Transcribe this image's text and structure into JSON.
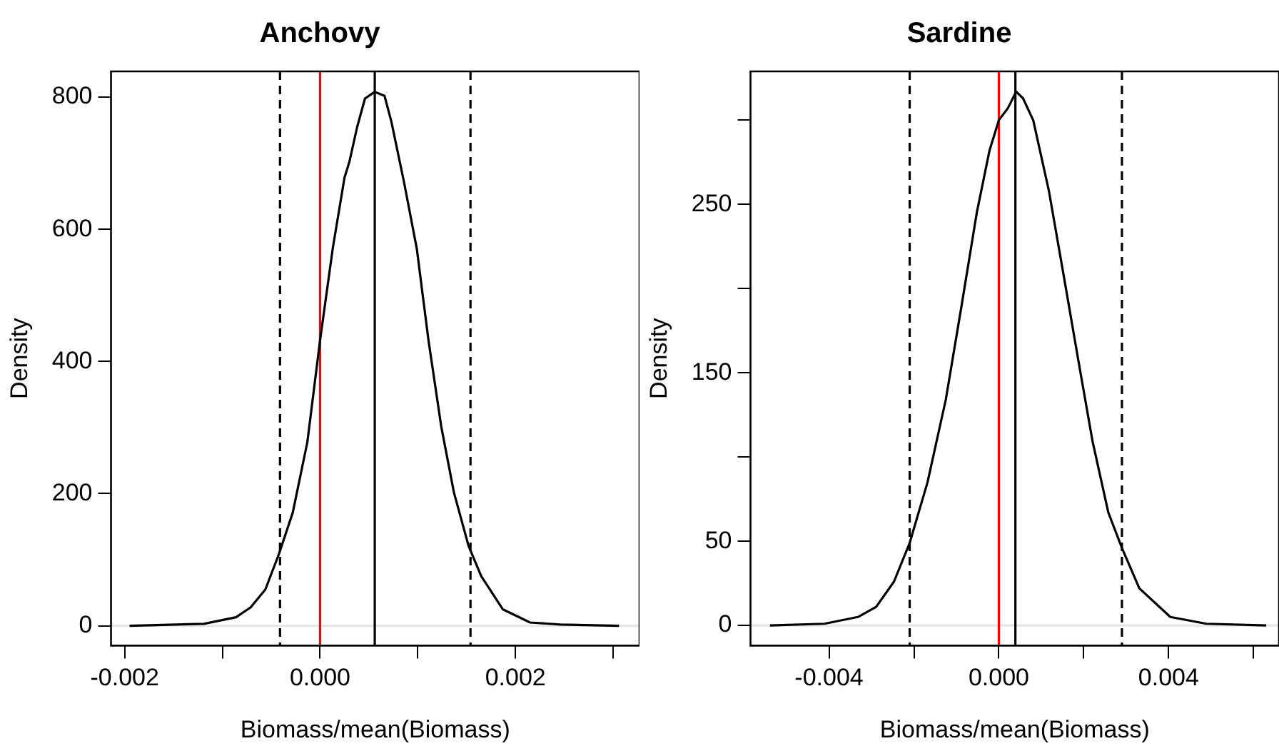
{
  "chart_data": [
    {
      "type": "line",
      "title": "Anchovy",
      "xlabel": "Biomass/mean(Biomass)",
      "ylabel": "Density",
      "xlim": [
        -0.00214,
        0.00327
      ],
      "ylim": [
        -30,
        839
      ],
      "xticks": [
        -0.002,
        {
          "value": -0.001,
          "label": null
        },
        {
          "value": 0,
          "label": "0.000"
        },
        {
          "value": 0.001,
          "label": null
        },
        {
          "value": 0.002,
          "label": "0.002"
        },
        {
          "value": 0.003,
          "label": null
        }
      ],
      "yticks": [
        0,
        200,
        400,
        600,
        800
      ],
      "grid": false,
      "legend": false,
      "marker": "none",
      "line_style": "solid",
      "series": [
        {
          "color": "#000000",
          "x": [
            -0.00195,
            -0.00119,
            -0.00086,
            -0.00071,
            -0.00056,
            -0.00042,
            -0.00028,
            -0.00013,
            0,
            0.00013,
            0.00025,
            0.0003,
            0.00038,
            0.00046,
            0.00056,
            0.00066,
            0.00073,
            0.00086,
            0.00099,
            0.00111,
            0.00124,
            0.00137,
            0.00152,
            0.00165,
            0.00187,
            0.00215,
            0.00246,
            0.00306
          ],
          "values": [
            0,
            3,
            13,
            28,
            55,
            109,
            171,
            278,
            432,
            571,
            678,
            702,
            755,
            798,
            808,
            802,
            763,
            671,
            571,
            432,
            302,
            202,
            121,
            75,
            25,
            5,
            2,
            0
          ]
        }
      ],
      "ref_lines": [
        {
          "axis": "y",
          "value": 0,
          "color": "#e6e6e6",
          "line_style": "solid"
        },
        {
          "axis": "x",
          "value": 0,
          "color": "#ff0000",
          "line_style": "solid"
        },
        {
          "axis": "x",
          "value": 0.00056,
          "color": "#000000",
          "line_style": "solid"
        },
        {
          "axis": "x",
          "value": -0.00041,
          "color": "#000000",
          "line_style": "dashed"
        },
        {
          "axis": "x",
          "value": 0.00154,
          "color": "#000000",
          "line_style": "dashed"
        }
      ]
    },
    {
      "type": "line",
      "title": "Sardine",
      "xlabel": "Biomass/mean(Biomass)",
      "ylabel": "Density",
      "xlim": [
        -0.00585,
        0.0066
      ],
      "ylim": [
        -12,
        329
      ],
      "xticks": [
        -0.004,
        {
          "value": -0.002,
          "label": null
        },
        {
          "value": 0,
          "label": "0.000"
        },
        {
          "value": 0.002,
          "label": null
        },
        0.004,
        {
          "value": 0.006,
          "label": null
        }
      ],
      "yticks": [
        0,
        50,
        {
          "value": 100,
          "label": null
        },
        150,
        {
          "value": 200,
          "label": null
        },
        250,
        {
          "value": 300,
          "label": null
        }
      ],
      "grid": false,
      "legend": false,
      "marker": "none",
      "line_style": "solid",
      "series": [
        {
          "color": "#000000",
          "x": [
            -0.00539,
            -0.00411,
            -0.00332,
            -0.00289,
            -0.00247,
            -0.0021,
            -0.00168,
            -0.00125,
            -0.00089,
            -0.00052,
            -0.00022,
            0,
            0.00021,
            0.00041,
            0.00057,
            0.00081,
            0.00118,
            0.00154,
            0.00191,
            0.00221,
            0.00258,
            0.0029,
            0.00331,
            0.00404,
            0.00489,
            0.0063
          ],
          "values": [
            0,
            1,
            5,
            11,
            26,
            49,
            85,
            134,
            188,
            245,
            282,
            300,
            307,
            317,
            313,
            300,
            258,
            206,
            152,
            109,
            67,
            46,
            22,
            5,
            1,
            0
          ]
        }
      ],
      "ref_lines": [
        {
          "axis": "y",
          "value": 0,
          "color": "#e6e6e6",
          "line_style": "solid"
        },
        {
          "axis": "x",
          "value": 0,
          "color": "#ff0000",
          "line_style": "solid"
        },
        {
          "axis": "x",
          "value": 0.00039,
          "color": "#000000",
          "line_style": "solid"
        },
        {
          "axis": "x",
          "value": -0.0021,
          "color": "#000000",
          "line_style": "dashed"
        },
        {
          "axis": "x",
          "value": 0.0029,
          "color": "#000000",
          "line_style": "dashed"
        }
      ]
    }
  ]
}
